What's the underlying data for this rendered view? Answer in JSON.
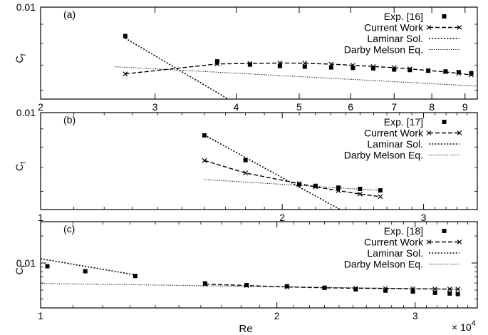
{
  "figure": {
    "xlabel": "Re",
    "x_multiplier": "× 10",
    "x_multiplier_exp": "4",
    "ylabel_main": "C",
    "ylabel_sub": "f"
  },
  "chart_data": [
    {
      "type": "scatter",
      "panel_label": "(a)",
      "xscale": "log",
      "yscale": "log",
      "xlim": [
        2,
        9.4
      ],
      "ylim": [
        0.005,
        0.01
      ],
      "xticks": [
        2,
        3,
        4,
        5,
        6,
        7,
        8,
        9
      ],
      "xtick_labels": [
        "2",
        "3",
        "4",
        "5",
        "6",
        "7",
        "8",
        "9"
      ],
      "yticks": [
        0.01
      ],
      "ytick_labels": [
        "0.01"
      ],
      "legend_position": "top-right",
      "series": [
        {
          "name": "Exp. [16]",
          "style": "square",
          "x": [
            2.7,
            3.74,
            4.2,
            4.67,
            5.1,
            5.6,
            6.05,
            6.5,
            7.0,
            7.4,
            7.9,
            8.4,
            8.8,
            9.2
          ],
          "y": [
            0.00837,
            0.00716,
            0.00702,
            0.00696,
            0.00693,
            0.0069,
            0.00688,
            0.00686,
            0.00681,
            0.00679,
            0.00676,
            0.00673,
            0.0067,
            0.00666
          ]
        },
        {
          "name": "Current Work",
          "style": "dashed-cross",
          "x": [
            2.7,
            3.74,
            4.2,
            4.67,
            5.1,
            5.6,
            6.05,
            6.5,
            7.0,
            7.4,
            7.9,
            8.4,
            8.8,
            9.2
          ],
          "y": [
            0.00663,
            0.00705,
            0.00707,
            0.00709,
            0.00708,
            0.00704,
            0.00699,
            0.00694,
            0.00689,
            0.00684,
            0.00677,
            0.00671,
            0.00665,
            0.00659
          ]
        },
        {
          "name": "Laminar Sol.",
          "style": "dotted",
          "x": [
            2.7,
            4.3
          ],
          "y": [
            0.00826,
            0.00512
          ]
        },
        {
          "name": "Darby Melson Eq.",
          "style": "dotted-fine",
          "x": [
            2.6,
            9.4
          ],
          "y": [
            0.00693,
            0.00615
          ]
        }
      ]
    },
    {
      "type": "scatter",
      "panel_label": "(b)",
      "xscale": "log",
      "yscale": "log",
      "xlim": [
        1,
        3.5
      ],
      "ylim": [
        0.005,
        0.01
      ],
      "xticks": [
        1,
        2,
        3
      ],
      "xtick_labels": [
        "1",
        "2",
        "3"
      ],
      "yticks": [
        0.01
      ],
      "ytick_labels": [
        "0.01"
      ],
      "legend_position": "top-right",
      "series": [
        {
          "name": "Exp. [17]",
          "style": "square",
          "x": [
            1.6,
            1.8,
            2.1,
            2.2,
            2.35,
            2.5,
            2.65
          ],
          "y": [
            0.00863,
            0.00735,
            0.00628,
            0.00622,
            0.00615,
            0.0061,
            0.00604
          ]
        },
        {
          "name": "Current Work",
          "style": "dashed-cross",
          "x": [
            1.6,
            1.8,
            2.1,
            2.2,
            2.35,
            2.5,
            2.65
          ],
          "y": [
            0.00733,
            0.00676,
            0.00631,
            0.00618,
            0.00603,
            0.0059,
            0.0058
          ]
        },
        {
          "name": "Laminar Sol.",
          "style": "dotted",
          "x": [
            1.6,
            2.4
          ],
          "y": [
            0.00865,
            0.00523
          ]
        },
        {
          "name": "Darby Melson Eq.",
          "style": "dotted-fine",
          "x": [
            1.6,
            2.65
          ],
          "y": [
            0.00648,
            0.00604
          ]
        }
      ]
    },
    {
      "type": "scatter",
      "panel_label": "(c)",
      "xscale": "log",
      "yscale": "log",
      "xlim": [
        1,
        3.6
      ],
      "ylim": [
        0.0035,
        0.02
      ],
      "xticks": [
        1,
        2,
        3
      ],
      "xtick_labels": [
        "1",
        "2",
        "3"
      ],
      "yticks": [
        0.01
      ],
      "ytick_labels": [
        "0.01"
      ],
      "legend_position": "top-right",
      "series": [
        {
          "name": "Exp. [18]",
          "style": "square",
          "x": [
            1.02,
            1.14,
            1.32,
            1.62,
            1.83,
            2.06,
            2.3,
            2.52,
            2.75,
            2.98,
            3.18,
            3.32,
            3.4
          ],
          "y": [
            0.00921,
            0.0081,
            0.00717,
            0.00594,
            0.00568,
            0.00552,
            0.00531,
            0.0051,
            0.00493,
            0.00482,
            0.00466,
            0.00458,
            0.00452
          ]
        },
        {
          "name": "Current Work",
          "style": "dashed-cross",
          "x": [
            1.62,
            1.83,
            2.06,
            2.3,
            2.52,
            2.75,
            2.98,
            3.18,
            3.32,
            3.4
          ],
          "y": [
            0.00582,
            0.00562,
            0.00542,
            0.0053,
            0.00524,
            0.00521,
            0.00518,
            0.00515,
            0.00513,
            0.00512
          ]
        },
        {
          "name": "Laminar Sol.",
          "style": "dotted",
          "x": [
            1.0,
            1.32
          ],
          "y": [
            0.01115,
            0.00739
          ]
        },
        {
          "name": "Darby Melson Eq.",
          "style": "dotted-fine",
          "x": [
            1.0,
            3.45
          ],
          "y": [
            0.00592,
            0.0051
          ]
        }
      ]
    }
  ]
}
